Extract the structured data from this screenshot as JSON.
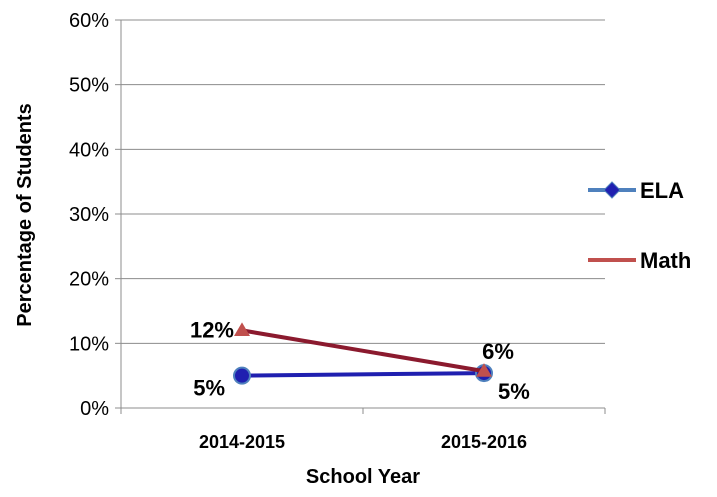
{
  "chart_data": {
    "type": "line",
    "title": "",
    "xlabel": "School Year",
    "ylabel": "Percentage of Students",
    "categories": [
      "2014-2015",
      "2015-2016"
    ],
    "ylim": [
      0,
      60
    ],
    "yticks": [
      0,
      10,
      20,
      30,
      40,
      50,
      60
    ],
    "ytick_labels": [
      "0%",
      "10%",
      "20%",
      "30%",
      "40%",
      "50%",
      "60%"
    ],
    "grid": true,
    "legend_position": "right",
    "series": [
      {
        "name": "ELA",
        "values": [
          5,
          5.4
        ],
        "labels": [
          "5%",
          "5%"
        ],
        "color": "#2020b0",
        "legend_color": "#4f81bd",
        "marker": "circle"
      },
      {
        "name": "Math",
        "values": [
          12,
          5.7
        ],
        "labels": [
          "12%",
          "6%"
        ],
        "color": "#8b1a2e",
        "legend_color": "#c0504d",
        "marker": "triangle"
      }
    ]
  }
}
